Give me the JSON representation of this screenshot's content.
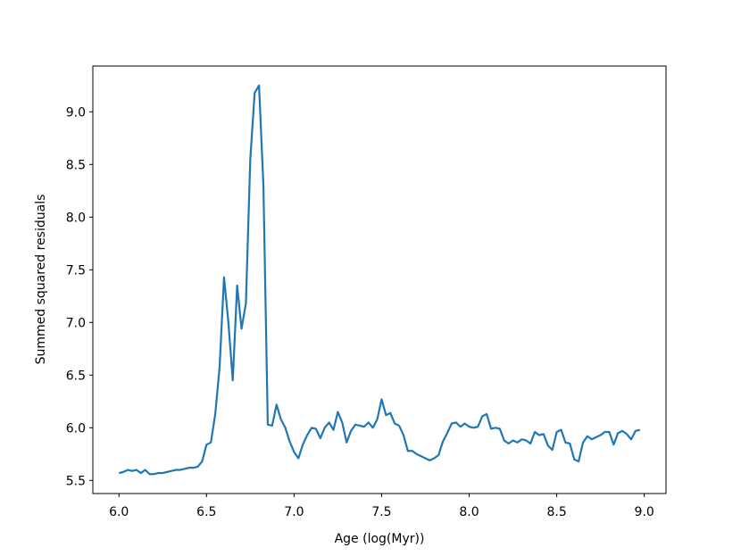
{
  "chart_data": {
    "type": "line",
    "xlabel": "Age (log(Myr))",
    "ylabel": "Summed squared residuals",
    "x": [
      6.0,
      6.025,
      6.05,
      6.075,
      6.1,
      6.125,
      6.15,
      6.175,
      6.2,
      6.225,
      6.25,
      6.275,
      6.3,
      6.325,
      6.35,
      6.375,
      6.4,
      6.425,
      6.45,
      6.475,
      6.5,
      6.525,
      6.55,
      6.575,
      6.6,
      6.625,
      6.65,
      6.675,
      6.7,
      6.725,
      6.75,
      6.775,
      6.8,
      6.825,
      6.85,
      6.875,
      6.9,
      6.925,
      6.95,
      6.975,
      7.0,
      7.025,
      7.05,
      7.075,
      7.1,
      7.125,
      7.15,
      7.175,
      7.2,
      7.225,
      7.25,
      7.275,
      7.3,
      7.325,
      7.35,
      7.375,
      7.4,
      7.425,
      7.45,
      7.475,
      7.5,
      7.525,
      7.55,
      7.575,
      7.6,
      7.625,
      7.65,
      7.675,
      7.7,
      7.725,
      7.75,
      7.775,
      7.8,
      7.825,
      7.85,
      7.875,
      7.9,
      7.925,
      7.95,
      7.975,
      8.0,
      8.025,
      8.05,
      8.075,
      8.1,
      8.125,
      8.15,
      8.175,
      8.2,
      8.225,
      8.25,
      8.275,
      8.3,
      8.325,
      8.35,
      8.375,
      8.4,
      8.425,
      8.45,
      8.475,
      8.5,
      8.525,
      8.55,
      8.575,
      8.6,
      8.625,
      8.65,
      8.675,
      8.7,
      8.725,
      8.75,
      8.775,
      8.8,
      8.825,
      8.85,
      8.875,
      8.9,
      8.925,
      8.95,
      8.975
    ],
    "series": [
      {
        "color": "#1f77b4",
        "values": [
          5.57,
          5.58,
          5.6,
          5.59,
          5.6,
          5.57,
          5.6,
          5.56,
          5.56,
          5.57,
          5.57,
          5.58,
          5.59,
          5.6,
          5.6,
          5.61,
          5.62,
          5.62,
          5.63,
          5.68,
          5.84,
          5.86,
          6.13,
          6.58,
          7.43,
          7.0,
          6.45,
          7.35,
          6.94,
          7.18,
          8.55,
          9.18,
          9.25,
          8.3,
          6.03,
          6.02,
          6.22,
          6.08,
          6.0,
          5.87,
          5.77,
          5.71,
          5.84,
          5.93,
          6.0,
          5.99,
          5.9,
          6.0,
          6.05,
          5.98,
          6.15,
          6.05,
          5.86,
          5.97,
          6.03,
          6.02,
          6.01,
          6.05,
          6.0,
          6.08,
          6.27,
          6.12,
          6.14,
          6.04,
          6.02,
          5.93,
          5.78,
          5.78,
          5.75,
          5.73,
          5.71,
          5.69,
          5.71,
          5.74,
          5.87,
          5.95,
          6.04,
          6.05,
          6.01,
          6.04,
          6.01,
          6.0,
          6.01,
          6.11,
          6.13,
          5.99,
          6.0,
          5.99,
          5.88,
          5.85,
          5.88,
          5.86,
          5.89,
          5.88,
          5.85,
          5.96,
          5.93,
          5.94,
          5.83,
          5.79,
          5.96,
          5.98,
          5.86,
          5.85,
          5.7,
          5.68,
          5.86,
          5.92,
          5.89,
          5.91,
          5.93,
          5.96,
          5.96,
          5.84,
          5.95,
          5.97,
          5.94,
          5.89,
          5.97,
          5.98
        ]
      }
    ],
    "xlim": [
      5.851,
      9.124
    ],
    "ylim": [
      5.3755,
      9.4345
    ],
    "xticks": [
      {
        "value": 6,
        "label": "6.0"
      },
      {
        "value": 6.5,
        "label": "6.5"
      },
      {
        "value": 7,
        "label": "7.0"
      },
      {
        "value": 7.5,
        "label": "7.5"
      },
      {
        "value": 8,
        "label": "8.0"
      },
      {
        "value": 8.5,
        "label": "8.5"
      },
      {
        "value": 9,
        "label": "9.0"
      }
    ],
    "yticks": [
      {
        "value": 5.5,
        "label": "5.5"
      },
      {
        "value": 6,
        "label": "6.0"
      },
      {
        "value": 6.5,
        "label": "6.5"
      },
      {
        "value": 7,
        "label": "7.0"
      },
      {
        "value": 7.5,
        "label": "7.5"
      },
      {
        "value": 8,
        "label": "8.0"
      },
      {
        "value": 8.5,
        "label": "8.5"
      },
      {
        "value": 9,
        "label": "9.0"
      }
    ],
    "grid": false
  }
}
